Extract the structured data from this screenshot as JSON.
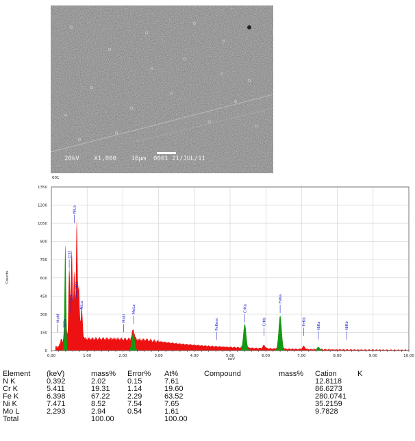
{
  "micrograph": {
    "info": "20kV    X1,000    10µm  0001 21/JUL/11"
  },
  "spectrum": {
    "sample_label": "001",
    "ylabel": "Counts",
    "xlabel": "keV",
    "y_ticks": [
      "0",
      "150",
      "300",
      "450",
      "600",
      "750",
      "900",
      "1050",
      "1200",
      "1350"
    ],
    "x_ticks": [
      "0.00",
      "1.00",
      "2.00",
      "3.00",
      "4.00",
      "5.00",
      "6.00",
      "7.00",
      "8.00",
      "9.00",
      "10.00"
    ],
    "colors": {
      "background_counts": "#ee1111",
      "element_peaks": "#119911",
      "labels": "#1a22cc"
    }
  },
  "chart_data": {
    "type": "area",
    "xlabel": "keV",
    "ylabel": "Counts",
    "xlim": [
      0,
      10
    ],
    "ylim": [
      0,
      1350
    ],
    "grid": true,
    "peaks": [
      {
        "label": "NK",
        "kev": 0.39,
        "counts": 870,
        "fill": "green"
      },
      {
        "label": "CrL",
        "kev": 0.57,
        "counts": 1080,
        "fill": "red"
      },
      {
        "label": "FeL",
        "kev": 0.71,
        "counts": 1110,
        "fill": "red"
      },
      {
        "label": "NiL",
        "kev": 0.85,
        "counts": 330,
        "fill": "red"
      },
      {
        "label": "MoL",
        "kev": 2.29,
        "counts": 145,
        "fill": "green"
      },
      {
        "label": "CrK",
        "kev": 5.41,
        "counts": 220,
        "fill": "green"
      },
      {
        "label": "CrK",
        "kev": 5.95,
        "counts": 40,
        "fill": "red"
      },
      {
        "label": "FeK",
        "kev": 6.4,
        "counts": 290,
        "fill": "green"
      },
      {
        "label": "FeK",
        "kev": 7.06,
        "counts": 40,
        "fill": "red"
      },
      {
        "label": "NiK",
        "kev": 7.47,
        "counts": 30,
        "fill": "green"
      }
    ],
    "peak_labels": [
      {
        "text": "MoM",
        "kev": 0.18,
        "y": 230
      },
      {
        "text": "NiKa",
        "kev": 0.36,
        "y": 190
      },
      {
        "text": "CrLl",
        "kev": 0.5,
        "y": 760
      },
      {
        "text": "FeLa",
        "kev": 0.55,
        "y": 390
      },
      {
        "text": "NiLa",
        "kev": 0.64,
        "y": 1130
      },
      {
        "text": "NiLl",
        "kev": 0.7,
        "y": 510
      },
      {
        "text": "NiLa",
        "kev": 0.84,
        "y": 340
      },
      {
        "text": "MoLl",
        "kev": 2.02,
        "y": 230
      },
      {
        "text": "MoLa",
        "kev": 2.3,
        "y": 300
      },
      {
        "text": "FeKesc",
        "kev": 4.62,
        "y": 165
      },
      {
        "text": "CrKa",
        "kev": 5.41,
        "y": 310
      },
      {
        "text": "CrKb",
        "kev": 5.95,
        "y": 200
      },
      {
        "text": "FeKa",
        "kev": 6.4,
        "y": 390
      },
      {
        "text": "FeKb",
        "kev": 7.06,
        "y": 200
      },
      {
        "text": "NiKa",
        "kev": 7.47,
        "y": 170
      },
      {
        "text": "NiKb",
        "kev": 8.26,
        "y": 170
      }
    ]
  },
  "table": {
    "headers": [
      "Element",
      "(keV)",
      "mass%",
      "Error%",
      "At%",
      "Compound",
      "mass%",
      "Cation",
      "K"
    ],
    "rows": [
      {
        "element": "N K",
        "kev": "0.392",
        "mass": "2.02",
        "error": "0.15",
        "at": "7.61",
        "cation": "12.8118"
      },
      {
        "element": "Cr K",
        "kev": "5.411",
        "mass": "19.31",
        "error": "1.14",
        "at": "19.60",
        "cation": "86.6273"
      },
      {
        "element": "Fe K",
        "kev": "6.398",
        "mass": "67.22",
        "error": "2.29",
        "at": "63.52",
        "cation": "280.0741"
      },
      {
        "element": "Ni K",
        "kev": "7.471",
        "mass": "8.52",
        "error": "7.54",
        "at": "7.65",
        "cation": "35.2159"
      },
      {
        "element": "Mo L",
        "kev": "2.293",
        "mass": "2.94",
        "error": "0.54",
        "at": "1.61",
        "cation": "9.7828"
      }
    ],
    "total": {
      "label": "Total",
      "mass": "100.00",
      "at": "100.00"
    }
  }
}
